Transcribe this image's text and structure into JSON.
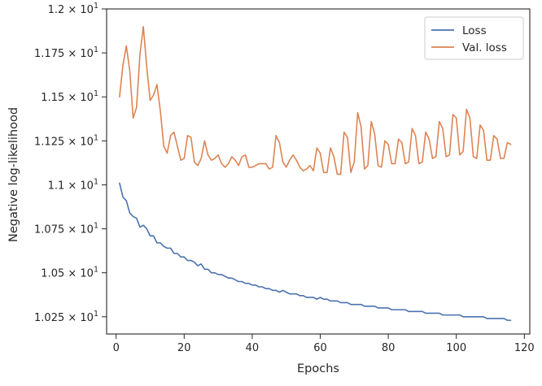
{
  "chart_data": {
    "type": "line",
    "title": "",
    "xlabel": "Epochs",
    "ylabel": "Negative log-likelihood",
    "xlim": [
      -2.8,
      121.6
    ],
    "ylim": [
      10.152,
      12.0
    ],
    "x_ticks": [
      0,
      20,
      40,
      60,
      80,
      100,
      120
    ],
    "y_ticks": [
      {
        "value": 10.25,
        "mantissa": "1.025"
      },
      {
        "value": 10.5,
        "mantissa": "1.05"
      },
      {
        "value": 10.75,
        "mantissa": "1.075"
      },
      {
        "value": 11.0,
        "mantissa": "1.1"
      },
      {
        "value": 11.25,
        "mantissa": "1.125"
      },
      {
        "value": 11.5,
        "mantissa": "1.15"
      },
      {
        "value": 11.75,
        "mantissa": "1.175"
      },
      {
        "value": 12.0,
        "mantissa": "1.2"
      }
    ],
    "y_tick_suffix": "× 10",
    "y_tick_exponent": "1",
    "grid": false,
    "legend_position": "top-right",
    "x": [
      1,
      2,
      3,
      4,
      5,
      6,
      7,
      8,
      9,
      10,
      11,
      12,
      13,
      14,
      15,
      16,
      17,
      18,
      19,
      20,
      21,
      22,
      23,
      24,
      25,
      26,
      27,
      28,
      29,
      30,
      31,
      32,
      33,
      34,
      35,
      36,
      37,
      38,
      39,
      40,
      41,
      42,
      43,
      44,
      45,
      46,
      47,
      48,
      49,
      50,
      51,
      52,
      53,
      54,
      55,
      56,
      57,
      58,
      59,
      60,
      61,
      62,
      63,
      64,
      65,
      66,
      67,
      68,
      69,
      70,
      71,
      72,
      73,
      74,
      75,
      76,
      77,
      78,
      79,
      80,
      81,
      82,
      83,
      84,
      85,
      86,
      87,
      88,
      89,
      90,
      91,
      92,
      93,
      94,
      95,
      96,
      97,
      98,
      99,
      100,
      101,
      102,
      103,
      104,
      105,
      106,
      107,
      108,
      109,
      110,
      111,
      112,
      113,
      114,
      115,
      116
    ],
    "series": [
      {
        "name": "Loss",
        "color": "#4c72b0",
        "values": [
          11.01,
          10.93,
          10.91,
          10.84,
          10.82,
          10.81,
          10.76,
          10.77,
          10.75,
          10.71,
          10.71,
          10.67,
          10.67,
          10.65,
          10.64,
          10.64,
          10.61,
          10.61,
          10.59,
          10.59,
          10.57,
          10.57,
          10.56,
          10.54,
          10.55,
          10.52,
          10.52,
          10.5,
          10.5,
          10.49,
          10.49,
          10.48,
          10.47,
          10.47,
          10.46,
          10.45,
          10.45,
          10.44,
          10.44,
          10.43,
          10.43,
          10.42,
          10.42,
          10.41,
          10.41,
          10.4,
          10.4,
          10.39,
          10.4,
          10.39,
          10.38,
          10.38,
          10.38,
          10.37,
          10.37,
          10.36,
          10.36,
          10.36,
          10.35,
          10.36,
          10.35,
          10.35,
          10.34,
          10.34,
          10.34,
          10.33,
          10.33,
          10.33,
          10.32,
          10.32,
          10.32,
          10.32,
          10.31,
          10.31,
          10.31,
          10.31,
          10.3,
          10.3,
          10.3,
          10.3,
          10.29,
          10.29,
          10.29,
          10.29,
          10.29,
          10.28,
          10.28,
          10.28,
          10.28,
          10.28,
          10.27,
          10.27,
          10.27,
          10.27,
          10.27,
          10.26,
          10.26,
          10.26,
          10.26,
          10.26,
          10.26,
          10.25,
          10.25,
          10.25,
          10.25,
          10.25,
          10.25,
          10.25,
          10.24,
          10.24,
          10.24,
          10.24,
          10.24,
          10.24,
          10.23,
          10.23
        ]
      },
      {
        "name": "Val. loss",
        "color": "#dd8452",
        "values": [
          11.5,
          11.68,
          11.79,
          11.65,
          11.38,
          11.44,
          11.74,
          11.9,
          11.67,
          11.48,
          11.51,
          11.57,
          11.42,
          11.22,
          11.18,
          11.28,
          11.3,
          11.22,
          11.14,
          11.15,
          11.28,
          11.27,
          11.13,
          11.11,
          11.15,
          11.25,
          11.17,
          11.14,
          11.15,
          11.17,
          11.12,
          11.1,
          11.12,
          11.16,
          11.14,
          11.11,
          11.16,
          11.17,
          11.1,
          11.1,
          11.11,
          11.12,
          11.12,
          11.12,
          11.09,
          11.1,
          11.28,
          11.24,
          11.13,
          11.1,
          11.14,
          11.17,
          11.14,
          11.1,
          11.08,
          11.09,
          11.11,
          11.08,
          11.21,
          11.18,
          11.07,
          11.07,
          11.21,
          11.16,
          11.06,
          11.06,
          11.3,
          11.27,
          11.07,
          11.13,
          11.41,
          11.33,
          11.09,
          11.11,
          11.36,
          11.29,
          11.11,
          11.1,
          11.25,
          11.23,
          11.12,
          11.12,
          11.26,
          11.24,
          11.12,
          11.13,
          11.32,
          11.28,
          11.12,
          11.13,
          11.3,
          11.26,
          11.15,
          11.16,
          11.36,
          11.32,
          11.16,
          11.17,
          11.4,
          11.38,
          11.17,
          11.19,
          11.43,
          11.38,
          11.16,
          11.15,
          11.34,
          11.31,
          11.14,
          11.14,
          11.28,
          11.26,
          11.15,
          11.15,
          11.24,
          11.23
        ]
      }
    ]
  }
}
